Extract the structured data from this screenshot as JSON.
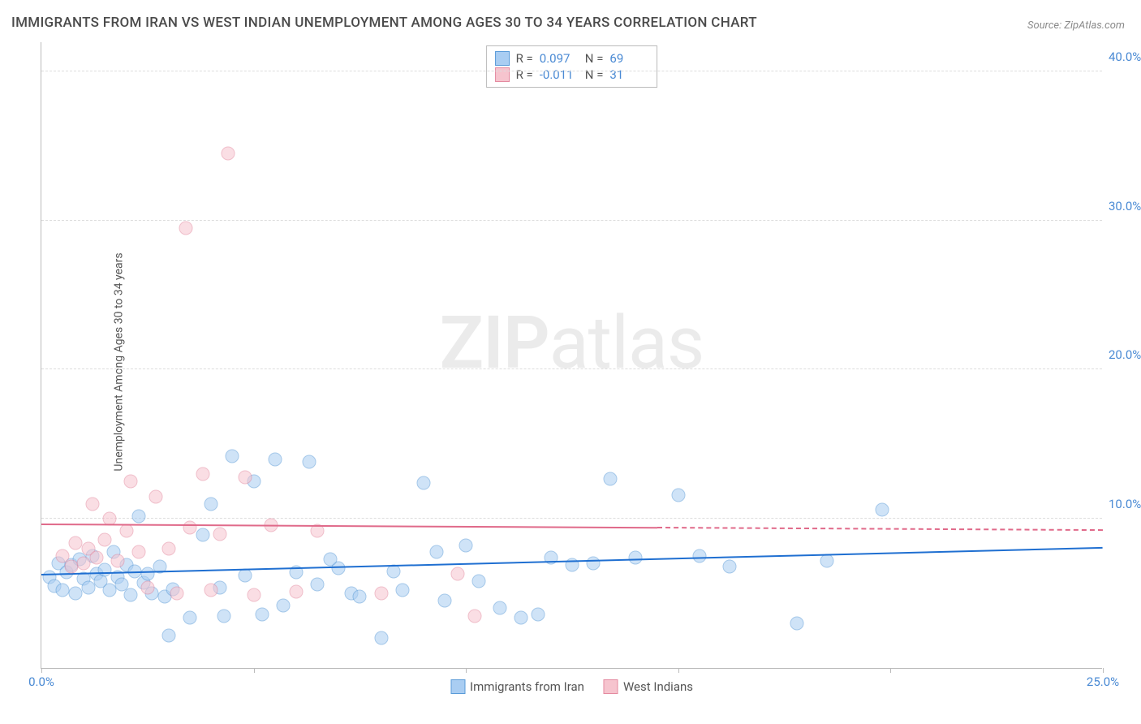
{
  "title": "IMMIGRANTS FROM IRAN VS WEST INDIAN UNEMPLOYMENT AMONG AGES 30 TO 34 YEARS CORRELATION CHART",
  "source": "Source: ZipAtlas.com",
  "y_axis_label": "Unemployment Among Ages 30 to 34 years",
  "watermark_bold": "ZIP",
  "watermark_light": "atlas",
  "chart": {
    "type": "scatter",
    "xlim": [
      0,
      25
    ],
    "ylim": [
      0,
      42
    ],
    "x_ticks": [
      0,
      5,
      10,
      15,
      20,
      25
    ],
    "x_tick_labels": {
      "0": "0.0%",
      "25": "25.0%"
    },
    "y_ticks": [
      10,
      20,
      30,
      40
    ],
    "y_tick_labels": {
      "10": "10.0%",
      "20": "20.0%",
      "30": "30.0%",
      "40": "40.0%"
    },
    "background_color": "#ffffff",
    "grid_color": "#dddddd",
    "axis_color": "#bbbbbb",
    "marker_radius": 8.5,
    "marker_opacity": 0.55,
    "series": [
      {
        "name": "Immigrants from Iran",
        "fill": "#a9cdf2",
        "stroke": "#5a9bd8",
        "trend_color": "#1f6fd1",
        "R": "0.097",
        "N": "69",
        "trend": {
          "x1": 0,
          "y1": 6.2,
          "x2": 25,
          "y2": 8.0,
          "solid_until_x": 25
        },
        "points": [
          [
            0.2,
            6.1
          ],
          [
            0.3,
            5.5
          ],
          [
            0.4,
            7.0
          ],
          [
            0.5,
            5.2
          ],
          [
            0.6,
            6.4
          ],
          [
            0.7,
            6.9
          ],
          [
            0.8,
            5.0
          ],
          [
            0.9,
            7.3
          ],
          [
            1.0,
            6.0
          ],
          [
            1.1,
            5.4
          ],
          [
            1.2,
            7.5
          ],
          [
            1.3,
            6.3
          ],
          [
            1.4,
            5.8
          ],
          [
            1.5,
            6.6
          ],
          [
            1.6,
            5.2
          ],
          [
            1.7,
            7.8
          ],
          [
            1.8,
            6.1
          ],
          [
            1.9,
            5.6
          ],
          [
            2.0,
            6.9
          ],
          [
            2.1,
            4.9
          ],
          [
            2.2,
            6.5
          ],
          [
            2.3,
            10.2
          ],
          [
            2.4,
            5.7
          ],
          [
            2.5,
            6.3
          ],
          [
            2.6,
            5.0
          ],
          [
            2.8,
            6.8
          ],
          [
            2.9,
            4.8
          ],
          [
            3.0,
            2.2
          ],
          [
            3.1,
            5.3
          ],
          [
            3.5,
            3.4
          ],
          [
            4.0,
            11.0
          ],
          [
            4.2,
            5.4
          ],
          [
            4.3,
            3.5
          ],
          [
            4.5,
            14.2
          ],
          [
            4.8,
            6.2
          ],
          [
            5.0,
            12.5
          ],
          [
            5.2,
            3.6
          ],
          [
            5.5,
            14.0
          ],
          [
            5.7,
            4.2
          ],
          [
            6.0,
            6.4
          ],
          [
            6.3,
            13.8
          ],
          [
            6.5,
            5.6
          ],
          [
            7.0,
            6.7
          ],
          [
            7.3,
            5.0
          ],
          [
            7.5,
            4.8
          ],
          [
            8.0,
            2.0
          ],
          [
            8.3,
            6.5
          ],
          [
            8.5,
            5.2
          ],
          [
            9.0,
            12.4
          ],
          [
            9.3,
            7.8
          ],
          [
            9.5,
            4.5
          ],
          [
            10.0,
            8.2
          ],
          [
            10.3,
            5.8
          ],
          [
            10.8,
            4.0
          ],
          [
            11.3,
            3.4
          ],
          [
            12.0,
            7.4
          ],
          [
            12.5,
            6.9
          ],
          [
            13.0,
            7.0
          ],
          [
            13.4,
            12.7
          ],
          [
            14.0,
            7.4
          ],
          [
            15.0,
            11.6
          ],
          [
            15.5,
            7.5
          ],
          [
            17.8,
            3.0
          ],
          [
            19.8,
            10.6
          ],
          [
            18.5,
            7.2
          ],
          [
            16.2,
            6.8
          ],
          [
            11.7,
            3.6
          ],
          [
            6.8,
            7.3
          ],
          [
            3.8,
            8.9
          ]
        ]
      },
      {
        "name": "West Indians",
        "fill": "#f6c4ce",
        "stroke": "#e48aa0",
        "trend_color": "#e06a8a",
        "R": "-0.011",
        "N": "31",
        "trend": {
          "x1": 0,
          "y1": 9.6,
          "x2": 25,
          "y2": 9.2,
          "solid_until_x": 14.5
        },
        "points": [
          [
            0.5,
            7.5
          ],
          [
            0.7,
            6.8
          ],
          [
            0.8,
            8.4
          ],
          [
            1.0,
            7.0
          ],
          [
            1.1,
            8.0
          ],
          [
            1.2,
            11.0
          ],
          [
            1.3,
            7.4
          ],
          [
            1.5,
            8.6
          ],
          [
            1.6,
            10.0
          ],
          [
            1.8,
            7.2
          ],
          [
            2.0,
            9.2
          ],
          [
            2.1,
            12.5
          ],
          [
            2.3,
            7.8
          ],
          [
            2.5,
            5.4
          ],
          [
            2.7,
            11.5
          ],
          [
            3.0,
            8.0
          ],
          [
            3.2,
            5.0
          ],
          [
            3.4,
            29.5
          ],
          [
            3.5,
            9.4
          ],
          [
            3.8,
            13.0
          ],
          [
            4.0,
            5.2
          ],
          [
            4.2,
            9.0
          ],
          [
            4.4,
            34.5
          ],
          [
            4.8,
            12.8
          ],
          [
            5.0,
            4.9
          ],
          [
            5.4,
            9.6
          ],
          [
            6.0,
            5.1
          ],
          [
            6.5,
            9.2
          ],
          [
            8.0,
            5.0
          ],
          [
            9.8,
            6.3
          ],
          [
            10.2,
            3.5
          ]
        ]
      }
    ]
  },
  "legend": {
    "series1_label": "Immigrants from Iran",
    "series2_label": "West Indians"
  },
  "colors": {
    "title_color": "#4a4a4a",
    "series1_value_color": "#4a8ad4",
    "series2_value_color": "#4a8ad4",
    "x_label_color": "#4a8ad4",
    "y_label_color": "#4a8ad4"
  }
}
